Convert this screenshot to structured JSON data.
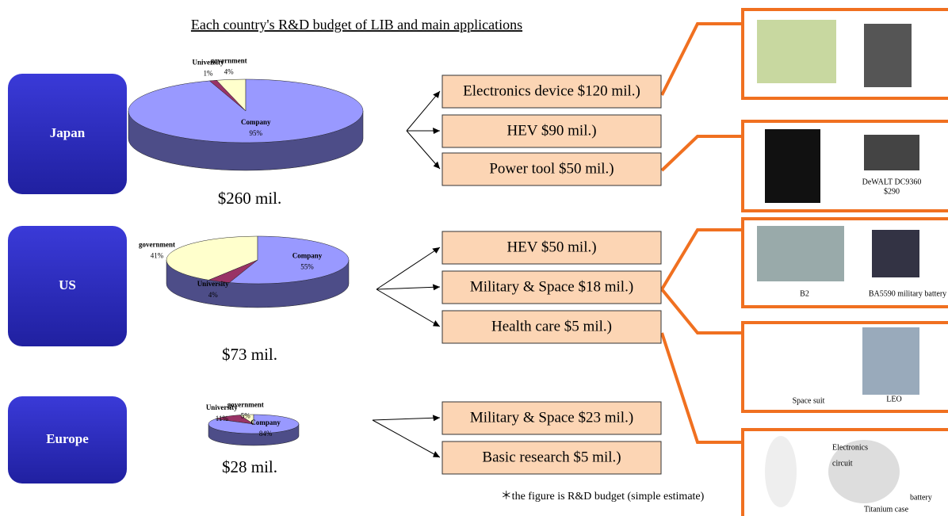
{
  "title": "Each country's R&D budget of LIB and main applications",
  "regions": [
    {
      "name": "Japan",
      "total": "$260 mil.",
      "pie": [
        {
          "label": "Company",
          "value": 95,
          "value_label": "95%"
        },
        {
          "label": "University",
          "value": 1,
          "value_label": "1%"
        },
        {
          "label": "government",
          "value": 4,
          "value_label": "4%"
        }
      ],
      "applications": [
        "Electronics device  $120 mil.)",
        "HEV  $90 mil.)",
        "Power tool  $50 mil.)"
      ]
    },
    {
      "name": "US",
      "total": "$73 mil.",
      "pie": [
        {
          "label": "Company",
          "value": 55,
          "value_label": "55%"
        },
        {
          "label": "University",
          "value": 4,
          "value_label": "4%"
        },
        {
          "label": "government",
          "value": 41,
          "value_label": "41%"
        }
      ],
      "applications": [
        "HEV   $50 mil.)",
        "Military & Space  $18 mil.)",
        "Health care  $5 mil.)"
      ]
    },
    {
      "name": "Europe",
      "total": "$28 mil.",
      "pie": [
        {
          "label": "Company",
          "value": 84,
          "value_label": "84%"
        },
        {
          "label": "University",
          "value": 11,
          "value_label": "11%"
        },
        {
          "label": "government",
          "value": 5,
          "value_label": "5%"
        }
      ],
      "applications": [
        "Military & Space  $23 mil.)",
        "Basic research  $5 mil.)"
      ]
    }
  ],
  "panels": {
    "dewalt": "DeWALT DC9360",
    "dewalt_price": "$290",
    "b2": "B2",
    "ba5590": "BA5590 military battery",
    "space_suit": "Space suit",
    "leo": "LEO",
    "electronics": "Electronics",
    "circuit": "circuit",
    "battery": "battery",
    "titanium": "Titanium case"
  },
  "note": "＊the figure is R&D budget (simple estimate)"
}
